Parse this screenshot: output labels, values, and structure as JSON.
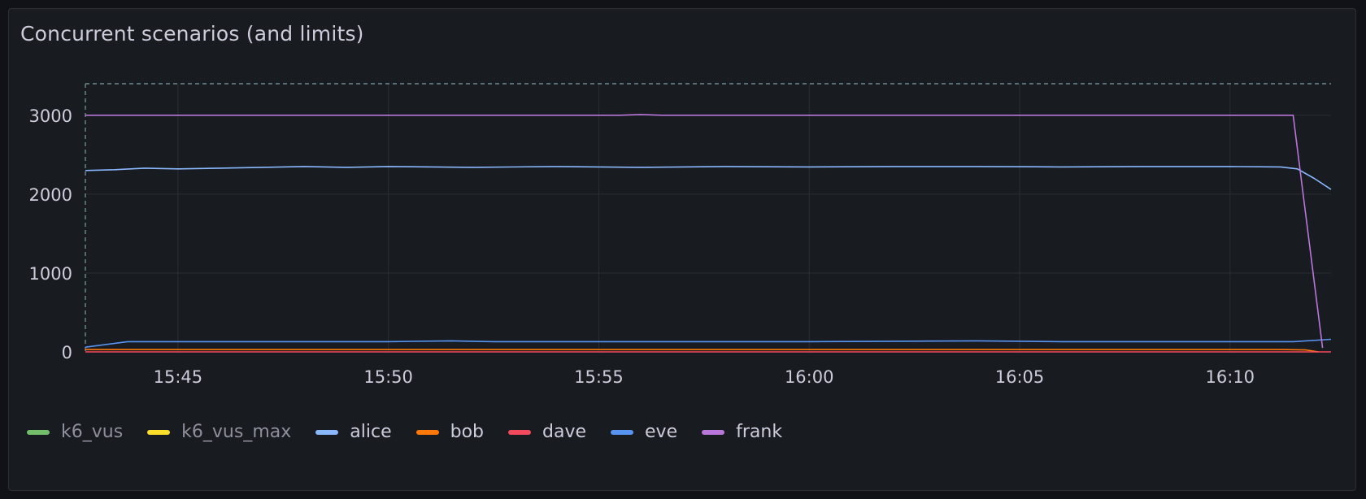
{
  "panel": {
    "title": "Concurrent scenarios (and limits)"
  },
  "chart_data": {
    "type": "line",
    "title": "Concurrent scenarios (and limits)",
    "x_ticks": [
      "15:45",
      "15:50",
      "15:55",
      "16:00",
      "16:05",
      "16:10"
    ],
    "x_tick_minutes": [
      45,
      50,
      55,
      60,
      65,
      70
    ],
    "x_range_minutes": [
      42.8,
      72.4
    ],
    "y_ticks": [
      "0",
      "1000",
      "2000",
      "3000"
    ],
    "y_tick_values": [
      0,
      1000,
      2000,
      3000
    ],
    "ylim": [
      0,
      3400
    ],
    "grid": true,
    "legend_position": "bottom-left",
    "threshold": {
      "value": 3400,
      "style": "dashed"
    },
    "series": [
      {
        "name": "k6_vus",
        "color": "#73bf69",
        "dim": true,
        "x": [],
        "y": []
      },
      {
        "name": "k6_vus_max",
        "color": "#fade2a",
        "dim": true,
        "x": [],
        "y": []
      },
      {
        "name": "alice",
        "color": "#8ab8ff",
        "x": [
          42.8,
          43.5,
          44.2,
          45.0,
          46.0,
          47.0,
          48.0,
          49.0,
          50.0,
          52.0,
          54.0,
          56.0,
          58.0,
          60.0,
          62.0,
          64.0,
          66.0,
          68.0,
          70.0,
          71.2,
          71.6,
          72.0,
          72.4
        ],
        "y": [
          2300,
          2310,
          2330,
          2320,
          2330,
          2340,
          2350,
          2340,
          2350,
          2340,
          2350,
          2340,
          2350,
          2345,
          2350,
          2350,
          2345,
          2350,
          2350,
          2345,
          2320,
          2200,
          2060
        ]
      },
      {
        "name": "bob",
        "color": "#ff780a",
        "x": [
          42.8,
          71.2,
          71.8,
          72.1
        ],
        "y": [
          30,
          30,
          25,
          0
        ]
      },
      {
        "name": "dave",
        "color": "#f2495c",
        "x": [
          42.8,
          72.4
        ],
        "y": [
          0,
          0
        ]
      },
      {
        "name": "eve",
        "color": "#5794f2",
        "x": [
          42.8,
          43.8,
          45.0,
          50.0,
          51.5,
          52.5,
          55.0,
          60.0,
          62.0,
          64.0,
          66.0,
          70.0,
          71.5,
          72.4
        ],
        "y": [
          60,
          130,
          130,
          130,
          140,
          130,
          130,
          130,
          135,
          140,
          130,
          130,
          130,
          160
        ]
      },
      {
        "name": "frank",
        "color": "#b877d9",
        "x": [
          42.8,
          55.5,
          56.0,
          56.5,
          71.5,
          72.2
        ],
        "y": [
          3000,
          3000,
          3010,
          3000,
          3000,
          50
        ]
      }
    ]
  }
}
